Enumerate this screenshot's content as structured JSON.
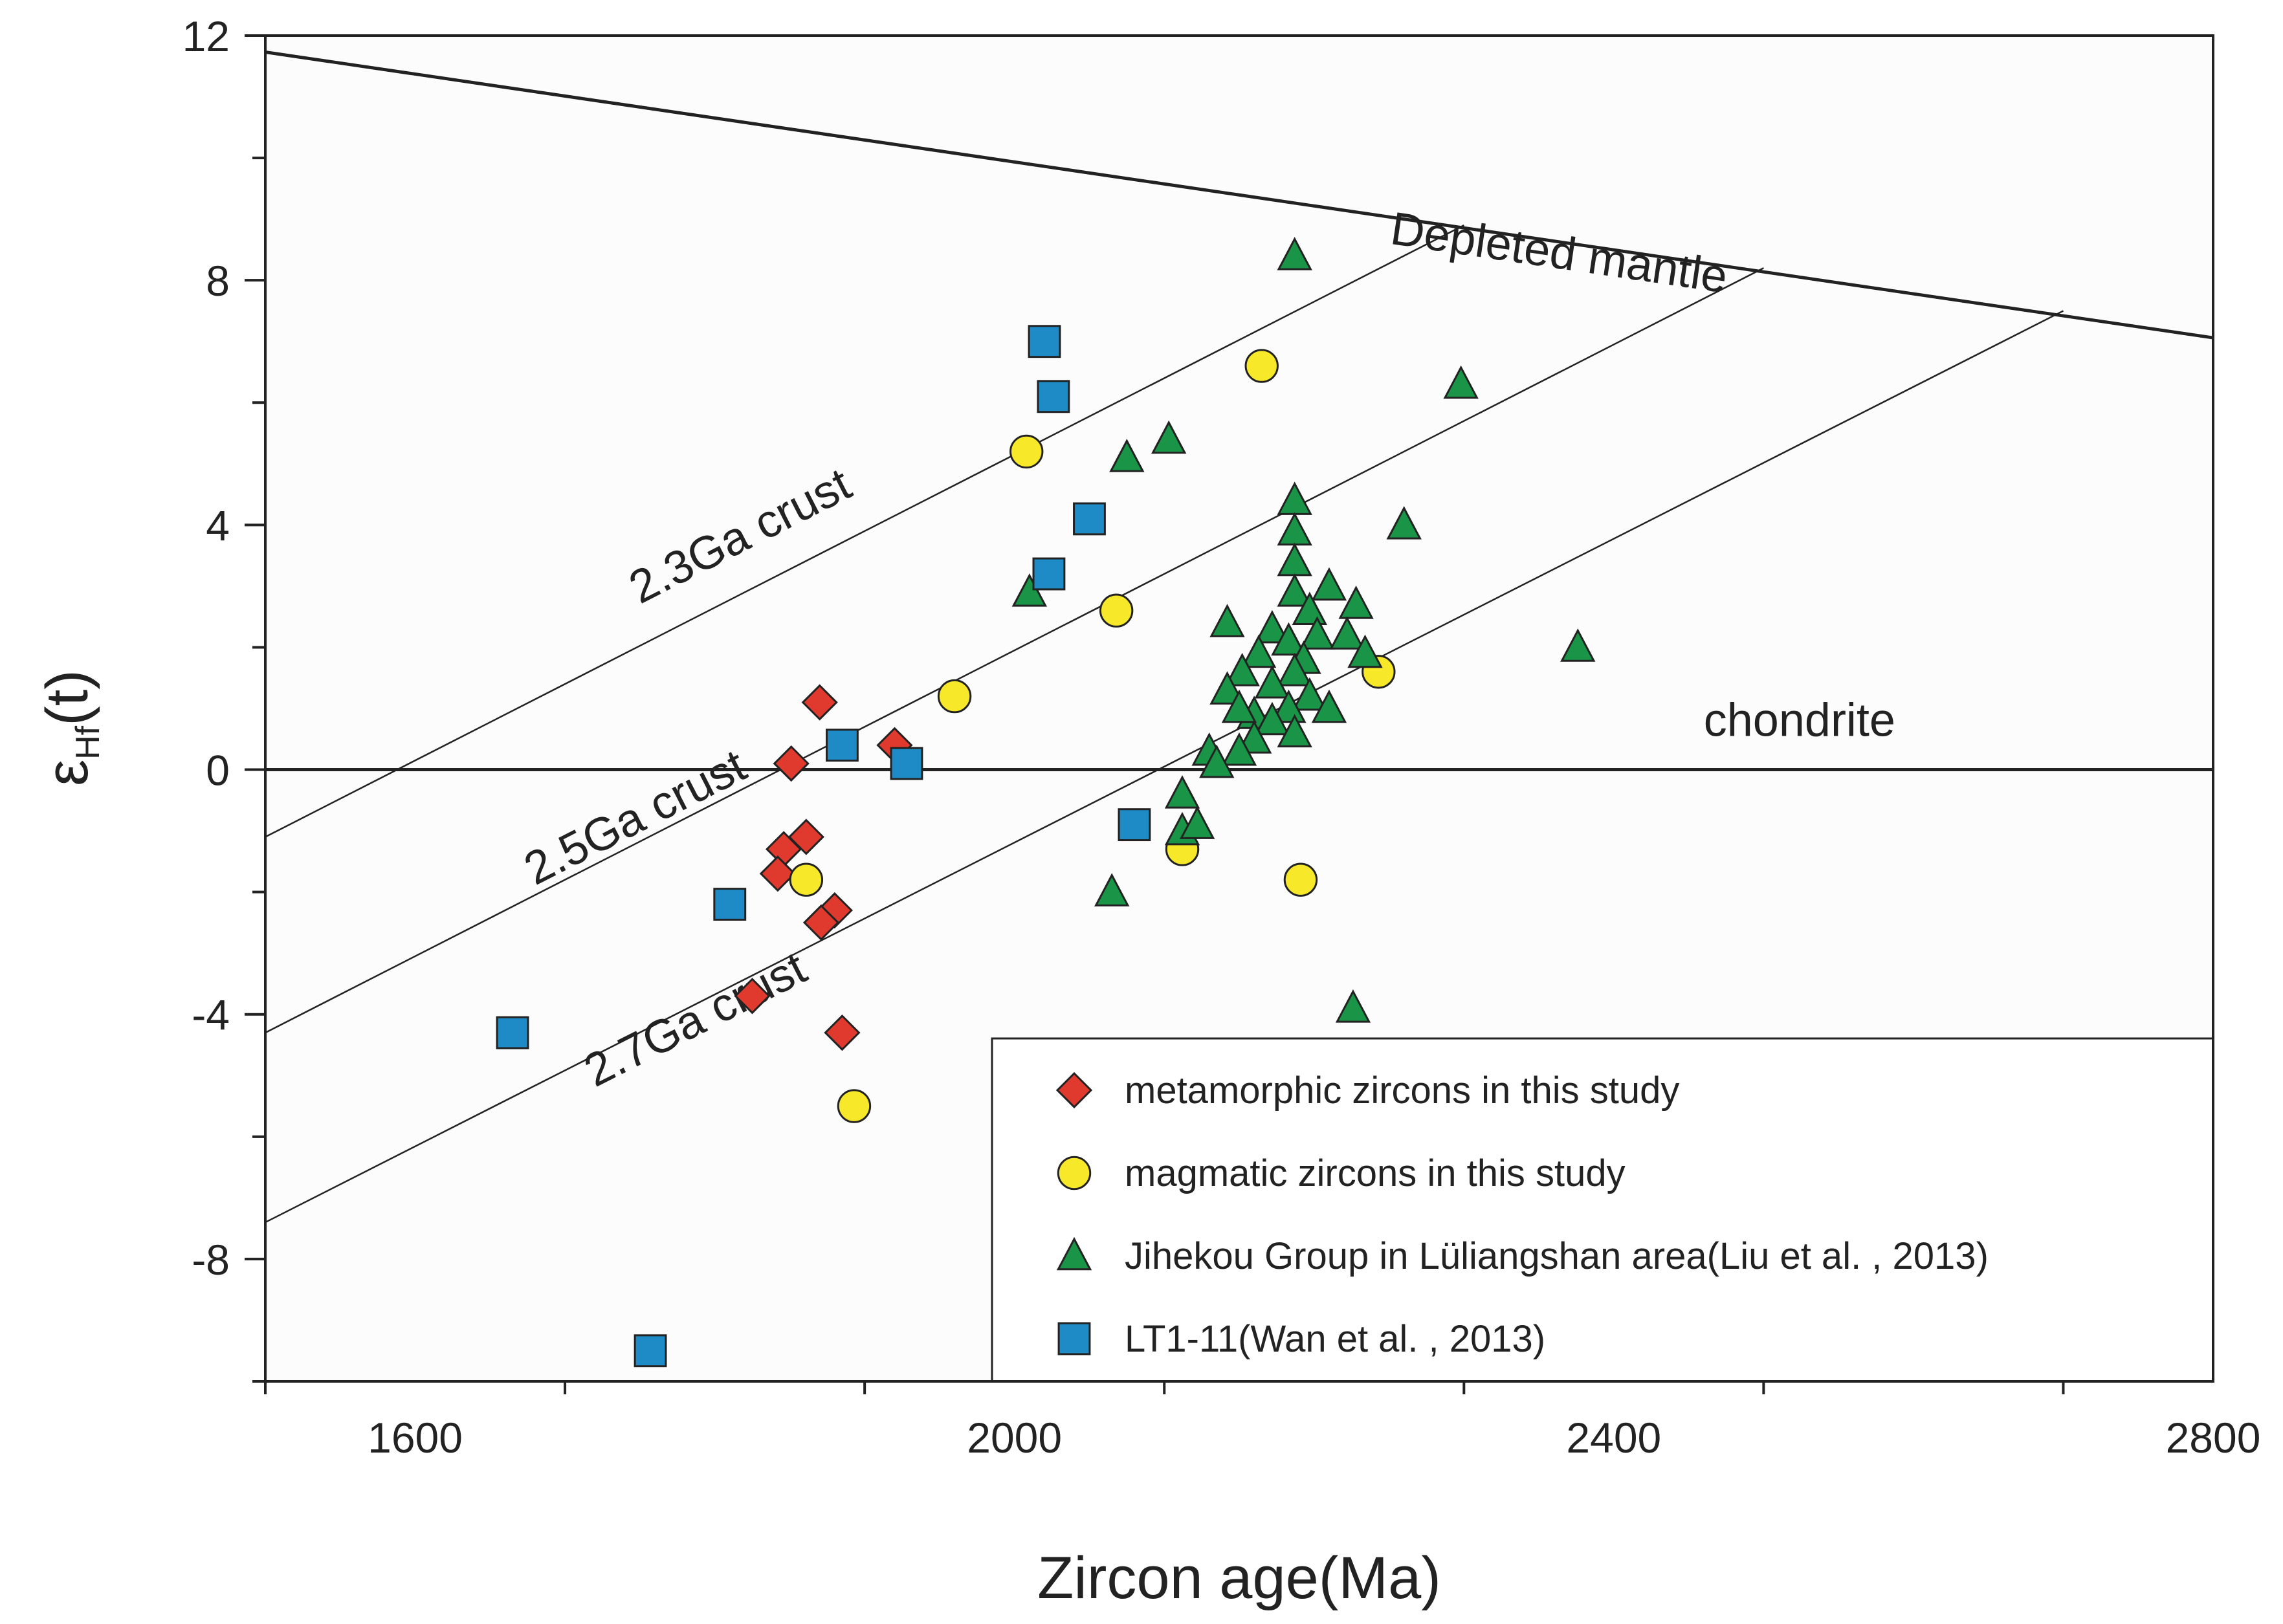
{
  "chart_data": {
    "type": "scatter",
    "xlabel": "Zircon age(Ma)",
    "ylabel_symbol": "ε",
    "ylabel_sub": "Hf",
    "ylabel_suffix": "(t)",
    "xlim": [
      1500,
      2800
    ],
    "ylim": [
      -10,
      12
    ],
    "x_ticks": [
      1600,
      2000,
      2400,
      2800
    ],
    "y_ticks": [
      -8,
      -4,
      0,
      4,
      8,
      12
    ],
    "grid": false,
    "colors": {
      "metamorphic": "#e03a2f",
      "magmatic": "#f7e92a",
      "jihekou": "#1a9446",
      "lt1": "#1f8bc6",
      "line": "#222222",
      "plot_bg": "#fcfcfc"
    },
    "reference_lines": [
      {
        "name": "Depleted mantle",
        "label": "Depleted mantle",
        "x": [
          1500,
          2800
        ],
        "y": [
          11.73,
          7.06
        ],
        "heavy": true,
        "label_at": {
          "x": 2250,
          "y": 8.6
        }
      },
      {
        "name": "chondrite",
        "label": "chondrite",
        "x": [
          1500,
          2800
        ],
        "y": [
          0,
          0
        ],
        "heavy": true,
        "label_at": {
          "x": 2460,
          "y": 0.55
        }
      },
      {
        "name": "2.3Ga crust",
        "label": "2.3Ga crust",
        "x": [
          1500,
          2300
        ],
        "y": [
          -1.1,
          8.9
        ],
        "heavy": false,
        "label_at": {
          "x": 1750,
          "y": 2.7
        }
      },
      {
        "name": "2.5Ga crust",
        "label": "2.5Ga crust",
        "x": [
          1500,
          2500
        ],
        "y": [
          -4.3,
          8.2
        ],
        "heavy": false,
        "label_at": {
          "x": 1680,
          "y": -1.9
        }
      },
      {
        "name": "2.7Ga crust",
        "label": "2.7Ga crust",
        "x": [
          1500,
          2700
        ],
        "y": [
          -7.4,
          7.5
        ],
        "heavy": false,
        "label_at": {
          "x": 1720,
          "y": -5.2
        }
      }
    ],
    "series": [
      {
        "name": "metamorphic zircons in this study",
        "marker": "diamond",
        "points": [
          [
            1851,
            0.1
          ],
          [
            1870,
            1.1
          ],
          [
            1920,
            0.4
          ],
          [
            1846,
            -1.3
          ],
          [
            1861,
            -1.1
          ],
          [
            1842,
            -1.7
          ],
          [
            1880,
            -2.3
          ],
          [
            1871,
            -2.5
          ],
          [
            1825,
            -3.7
          ],
          [
            1885,
            -4.3
          ]
        ]
      },
      {
        "name": "magmatic zircons in this study",
        "marker": "circle",
        "points": [
          [
            2008,
            5.2
          ],
          [
            2165,
            6.6
          ],
          [
            2068,
            2.6
          ],
          [
            1960,
            1.2
          ],
          [
            2243,
            1.6
          ],
          [
            1861,
            -1.8
          ],
          [
            2112,
            -1.3
          ],
          [
            2191,
            -1.8
          ],
          [
            1893,
            -5.5
          ]
        ]
      },
      {
        "name": "Jihekou Group in Lüliangshan area(Liu et al. , 2013)",
        "marker": "triangle",
        "points": [
          [
            2187,
            8.4
          ],
          [
            2298,
            6.3
          ],
          [
            2103,
            5.4
          ],
          [
            2075,
            5.1
          ],
          [
            2010,
            2.9
          ],
          [
            2187,
            4.4
          ],
          [
            2260,
            4.0
          ],
          [
            2187,
            3.9
          ],
          [
            2187,
            3.4
          ],
          [
            2210,
            3.0
          ],
          [
            2187,
            2.9
          ],
          [
            2228,
            2.7
          ],
          [
            2197,
            2.6
          ],
          [
            2142,
            2.4
          ],
          [
            2172,
            2.3
          ],
          [
            2202,
            2.2
          ],
          [
            2183,
            2.1
          ],
          [
            2222,
            2.2
          ],
          [
            2163,
            1.9
          ],
          [
            2193,
            1.8
          ],
          [
            2234,
            1.9
          ],
          [
            2187,
            1.6
          ],
          [
            2152,
            1.6
          ],
          [
            2172,
            1.4
          ],
          [
            2197,
            1.2
          ],
          [
            2142,
            1.3
          ],
          [
            2183,
            1.0
          ],
          [
            2160,
            0.9
          ],
          [
            2210,
            1.0
          ],
          [
            2150,
            1.0
          ],
          [
            2172,
            0.8
          ],
          [
            2187,
            0.6
          ],
          [
            2160,
            0.5
          ],
          [
            2130,
            0.3
          ],
          [
            2150,
            0.3
          ],
          [
            2135,
            0.1
          ],
          [
            2376,
            2.0
          ],
          [
            2112,
            -0.4
          ],
          [
            2112,
            -1.0
          ],
          [
            2122,
            -0.9
          ],
          [
            2065,
            -2.0
          ],
          [
            2226,
            -3.9
          ]
        ]
      },
      {
        "name": "LT1-11(Wan et al. , 2013)",
        "marker": "square",
        "points": [
          [
            2020,
            7.0
          ],
          [
            2026,
            6.1
          ],
          [
            2050,
            4.1
          ],
          [
            2023,
            3.2
          ],
          [
            1885,
            0.4
          ],
          [
            1928,
            0.1
          ],
          [
            2080,
            -0.9
          ],
          [
            1810,
            -2.2
          ],
          [
            1665,
            -4.3
          ],
          [
            1757,
            -9.5
          ]
        ]
      }
    ],
    "legend": {
      "position": "bottom-right",
      "entries": [
        {
          "label": "metamorphic zircons in this study",
          "marker": "diamond"
        },
        {
          "label": "magmatic zircons in this study",
          "marker": "circle"
        },
        {
          "label": "Jihekou Group in Lüliangshan area(Liu et al. , 2013)",
          "marker": "triangle"
        },
        {
          "label": "LT1-11(Wan et al. , 2013)",
          "marker": "square"
        }
      ]
    }
  }
}
